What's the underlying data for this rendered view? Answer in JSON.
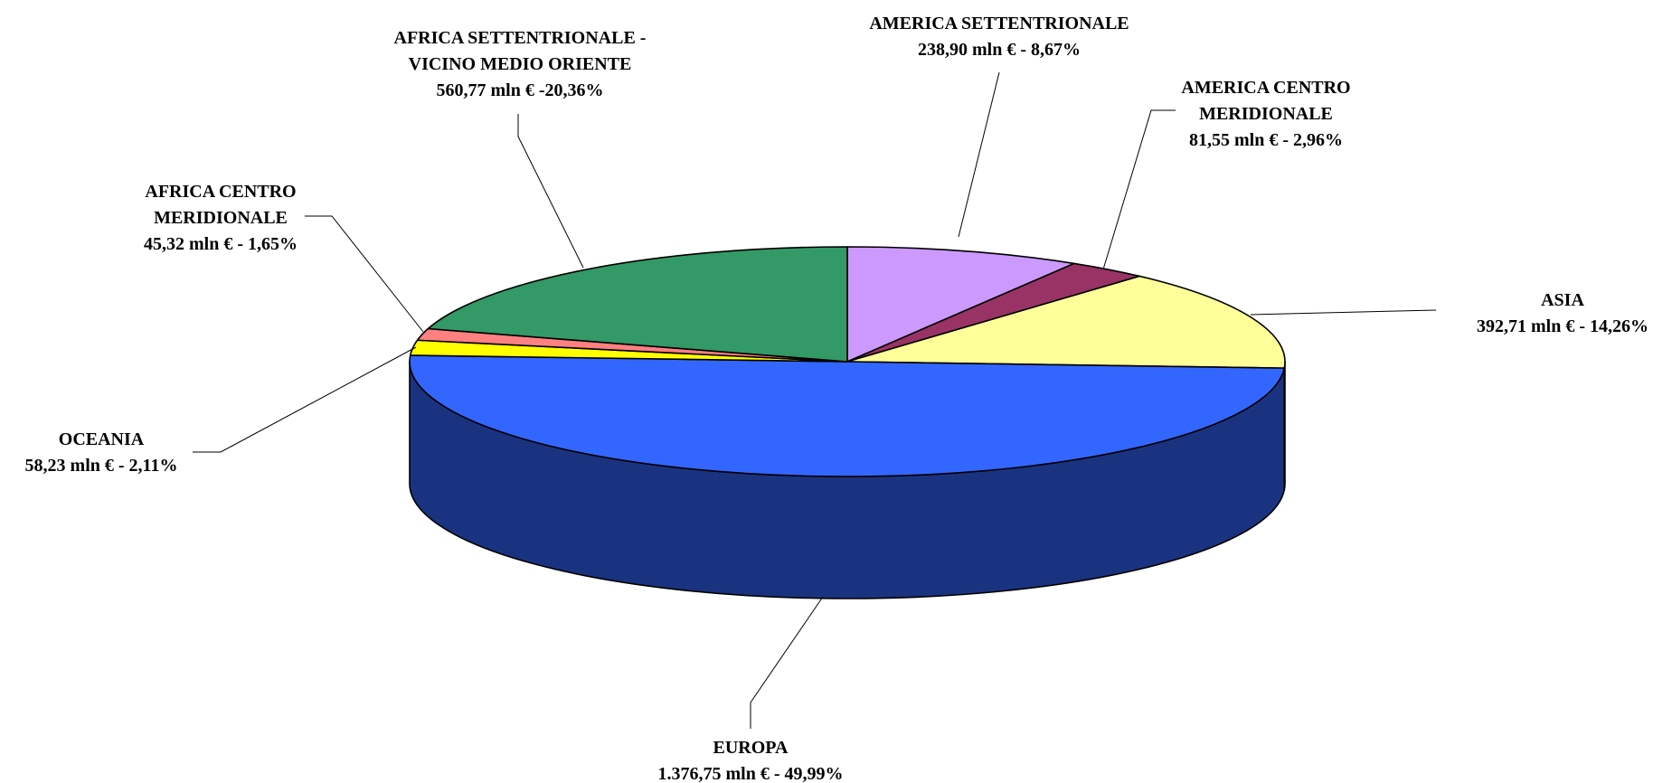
{
  "chart_data": {
    "type": "pie",
    "style": "3d",
    "title": "",
    "slices": [
      {
        "id": "america-settentrionale",
        "label_lines": [
          "AMERICA SETTENTRIONALE",
          "238,90 mln € - 8,67%"
        ],
        "value": 238.9,
        "percent": 8.67,
        "color": "#CC99FF",
        "side_color": "#664C80"
      },
      {
        "id": "america-centro-meridionale",
        "label_lines": [
          "AMERICA CENTRO",
          "MERIDIONALE",
          "81,55 mln € - 2,96%"
        ],
        "value": 81.55,
        "percent": 2.96,
        "color": "#993366",
        "side_color": "#4C1933"
      },
      {
        "id": "asia",
        "label_lines": [
          "ASIA",
          "392,71 mln € - 14,26%"
        ],
        "value": 392.71,
        "percent": 14.26,
        "color": "#FFFF99",
        "side_color": "#80804C"
      },
      {
        "id": "europa",
        "label_lines": [
          "EUROPA",
          "1.376,75 mln € - 49,99%"
        ],
        "value": 1376.75,
        "percent": 49.99,
        "color": "#3366FF",
        "side_color": "#1A3380"
      },
      {
        "id": "oceania",
        "label_lines": [
          "OCEANIA",
          "58,23 mln € - 2,11%"
        ],
        "value": 58.23,
        "percent": 2.11,
        "color": "#FFFF00",
        "side_color": "#808000"
      },
      {
        "id": "africa-centro-meridionale",
        "label_lines": [
          "AFRICA CENTRO",
          "MERIDIONALE",
          "45,32 mln € - 1,65%"
        ],
        "value": 45.32,
        "percent": 1.65,
        "color": "#FF8080",
        "side_color": "#804040"
      },
      {
        "id": "africa-settentrionale-vicino-medio-oriente",
        "label_lines": [
          "AFRICA SETTENTRIONALE -",
          "VICINO MEDIO ORIENTE",
          "560,77 mln € -20,36%"
        ],
        "value": 560.77,
        "percent": 20.36,
        "color": "#339966",
        "side_color": "#194C33"
      }
    ],
    "legend": "none"
  }
}
